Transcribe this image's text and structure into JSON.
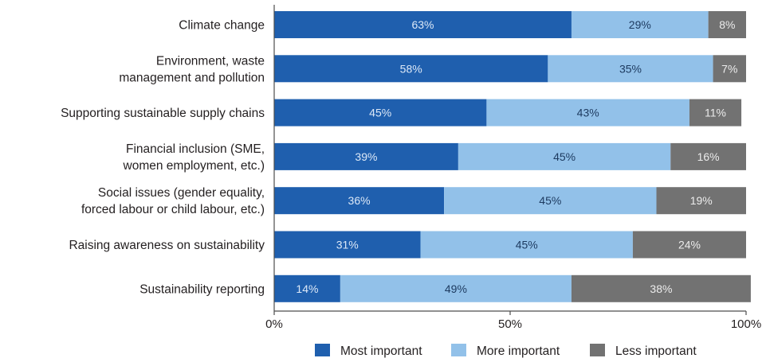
{
  "chart_data": {
    "type": "bar",
    "orientation": "horizontal",
    "stacked": true,
    "categories": [
      [
        "Climate change"
      ],
      [
        "Environment, waste",
        "management and pollution"
      ],
      [
        "Supporting sustainable supply chains"
      ],
      [
        "Financial inclusion (SME,",
        "women employment, etc.)"
      ],
      [
        "Social issues (gender equality,",
        "forced labour or child labour, etc.)"
      ],
      [
        "Raising awareness on sustainability"
      ],
      [
        "Sustainability reporting"
      ]
    ],
    "series": [
      {
        "name": "Most important",
        "color": "#1f5fae",
        "label_color": "#dce8f7",
        "values": [
          63,
          58,
          45,
          39,
          36,
          31,
          14
        ]
      },
      {
        "name": "More important",
        "color": "#92c1e9",
        "label_color": "#1d3a5f",
        "values": [
          29,
          35,
          43,
          45,
          45,
          45,
          49
        ]
      },
      {
        "name": "Less important",
        "color": "#727272",
        "label_color": "#ececec",
        "values": [
          8,
          7,
          11,
          16,
          19,
          24,
          38
        ]
      }
    ],
    "value_suffix": "%",
    "xlim": [
      0,
      100
    ],
    "xticks": [
      0,
      50,
      100
    ],
    "xtick_labels": [
      "0%",
      "50%",
      "100%"
    ],
    "legend_position": "bottom",
    "grid": false
  }
}
